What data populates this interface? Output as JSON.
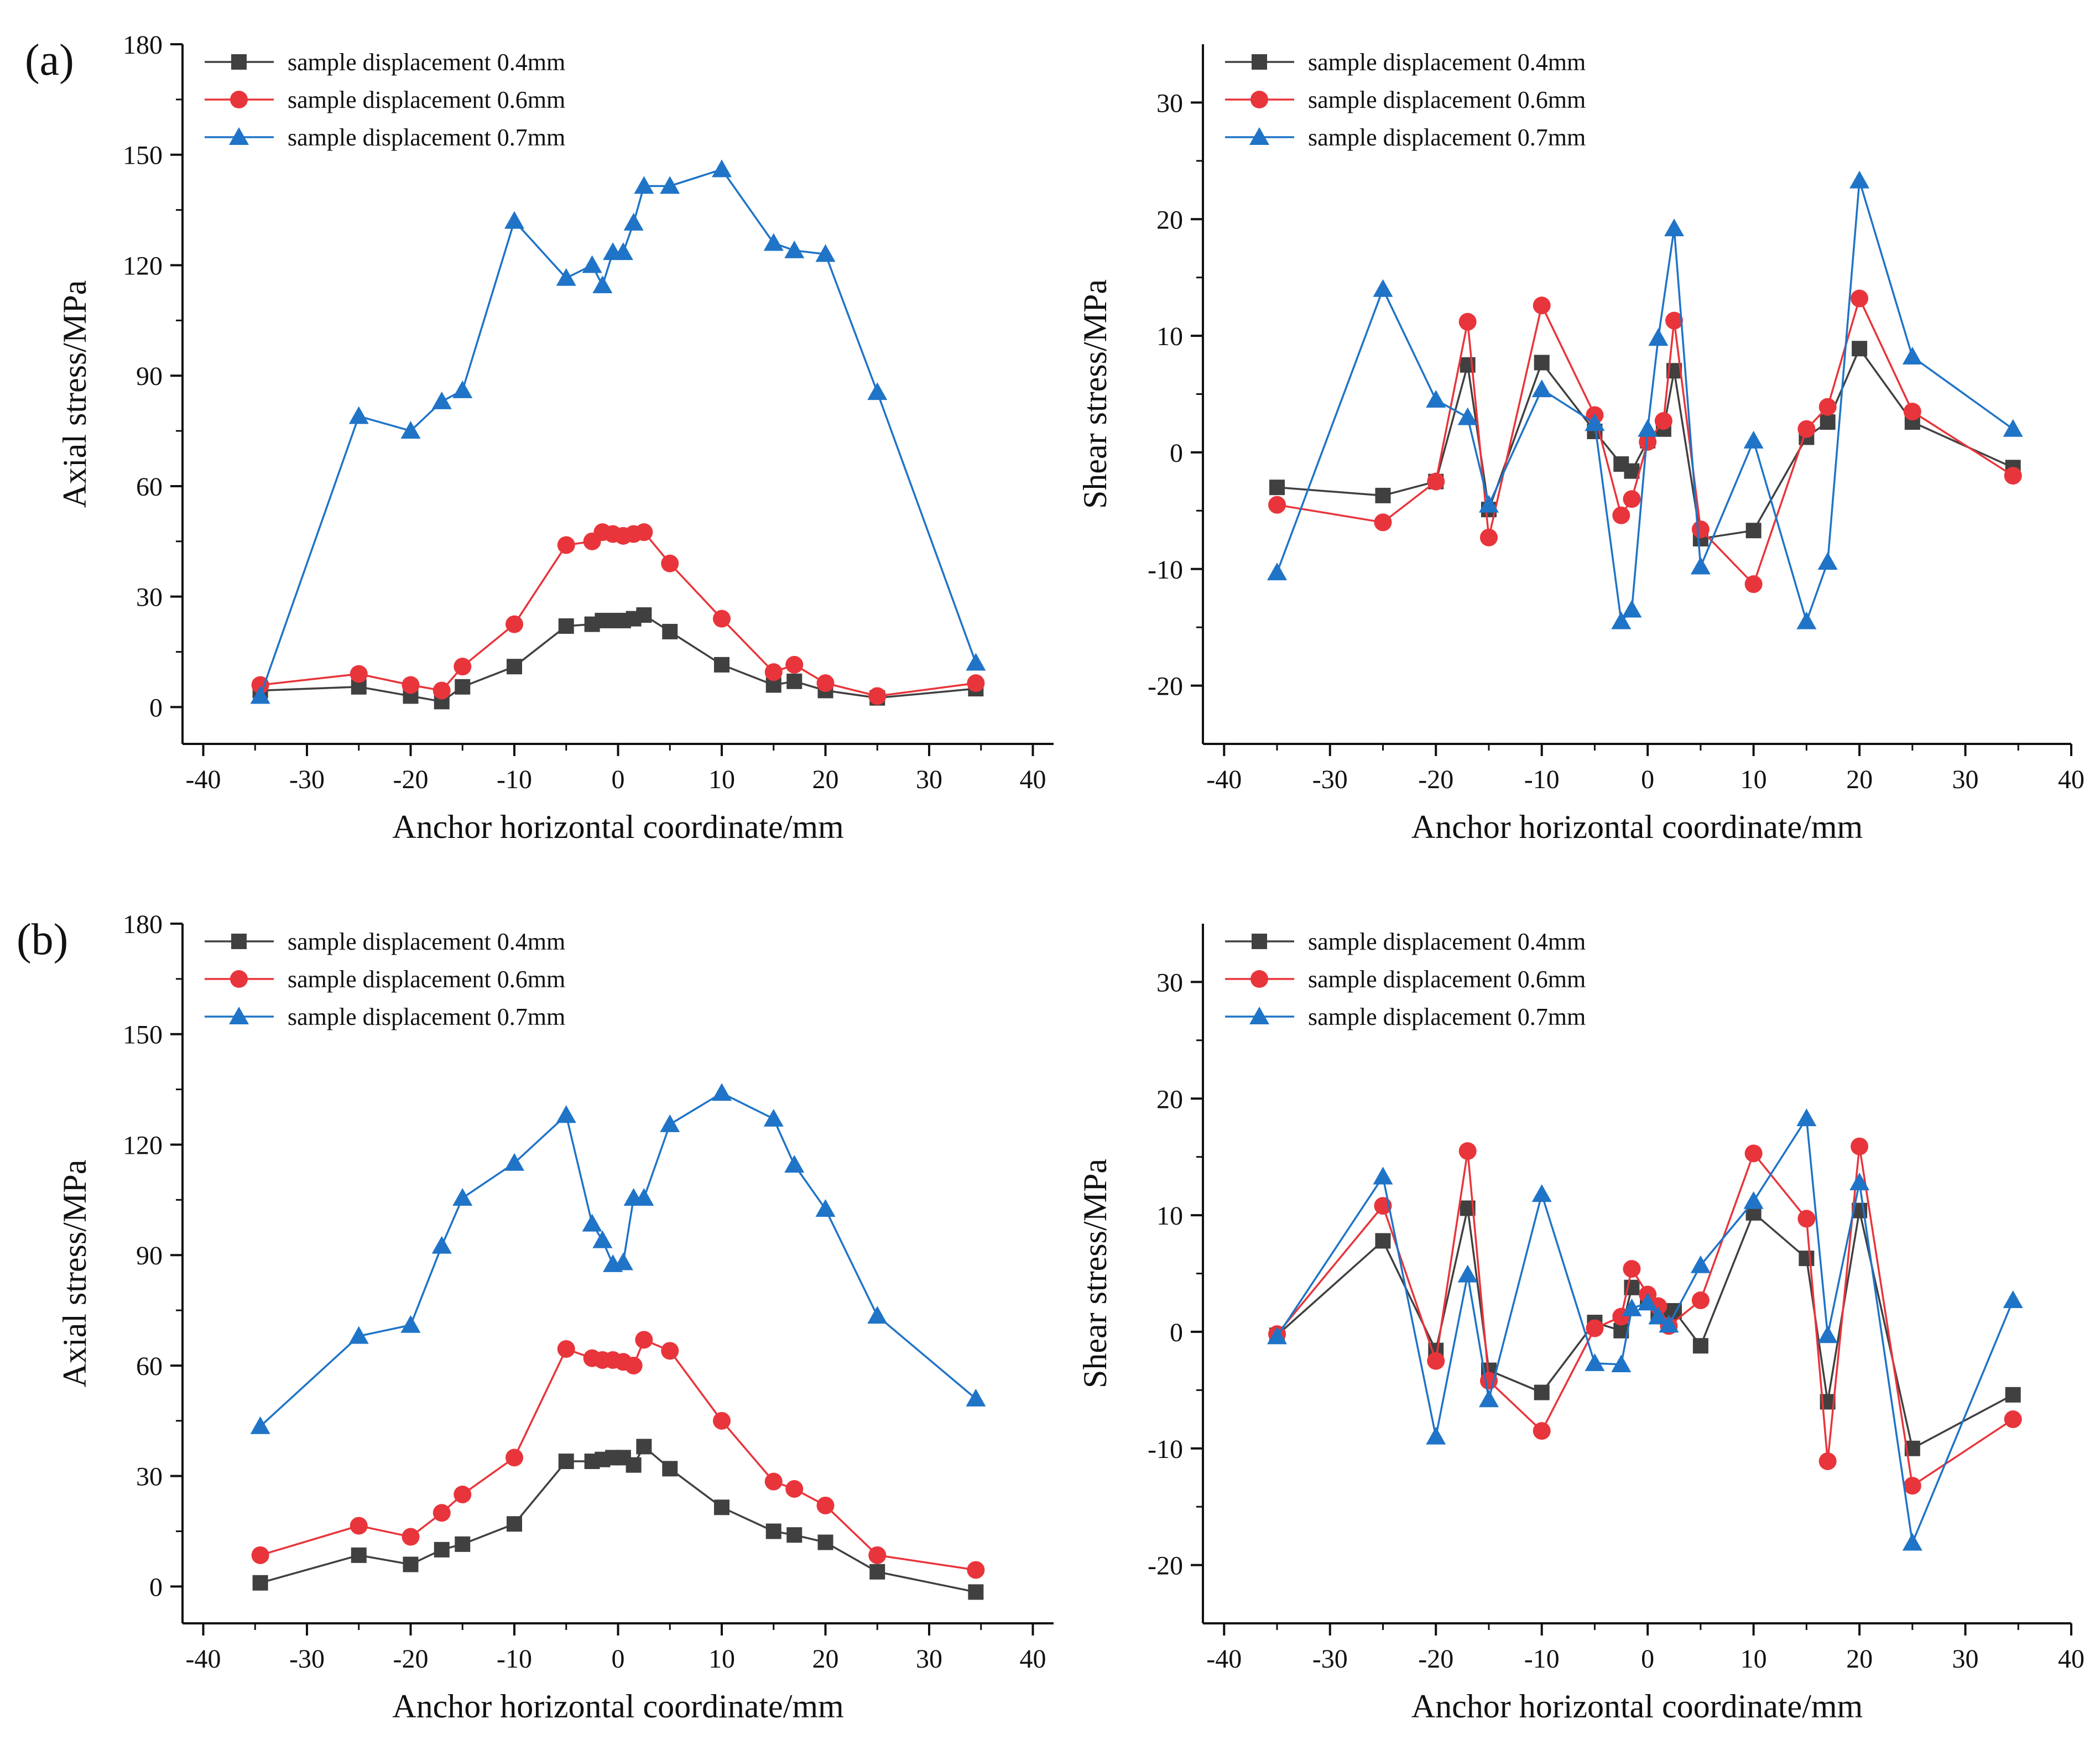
{
  "figure": {
    "panel_labels": [
      "(a)",
      "(b)"
    ],
    "series_styles": [
      {
        "color": "#404040",
        "marker": "square"
      },
      {
        "color": "#e8353b",
        "marker": "circle"
      },
      {
        "color": "#1f74c7",
        "marker": "triangle"
      }
    ]
  },
  "chart_data": [
    {
      "id": "a-axial",
      "type": "line",
      "panel": "(a)",
      "title": "",
      "xlabel": "Anchor horizontal coordinate/mm",
      "ylabel": "Axial stress/MPa",
      "xlim": [
        -42,
        42
      ],
      "ylim": [
        -10,
        180
      ],
      "xticks": [
        -40,
        -30,
        -20,
        -10,
        0,
        10,
        20,
        30,
        40
      ],
      "yticks": [
        0,
        30,
        60,
        90,
        120,
        150,
        180
      ],
      "legend": "top-left",
      "series": [
        {
          "name": "sample displacement 0.4mm",
          "x": [
            -34.5,
            -25,
            -20,
            -17,
            -15,
            -10,
            -5,
            -2.5,
            -1.5,
            -0.5,
            0.5,
            1.5,
            2.5,
            5,
            10,
            15,
            17,
            20,
            25,
            34.5
          ],
          "values": [
            4.5,
            5.5,
            3,
            1.5,
            5.5,
            11,
            22,
            22.5,
            23.5,
            23.5,
            23.5,
            24,
            25,
            20.5,
            11.5,
            6,
            7,
            4.5,
            2.5,
            5
          ]
        },
        {
          "name": "sample displacement 0.6mm",
          "x": [
            -34.5,
            -25,
            -20,
            -17,
            -15,
            -10,
            -5,
            -2.5,
            -1.5,
            -0.5,
            0.5,
            1.5,
            2.5,
            5,
            10,
            15,
            17,
            20,
            25,
            34.5
          ],
          "values": [
            6,
            9,
            6,
            4.5,
            11,
            22.5,
            44,
            45,
            47.5,
            47,
            46.5,
            47,
            47.5,
            39,
            24,
            9.5,
            11.5,
            6.5,
            3,
            6.5
          ]
        },
        {
          "name": "sample displacement 0.7mm",
          "x": [
            -34.5,
            -25,
            -20,
            -17,
            -15,
            -10,
            -5,
            -2.5,
            -1.5,
            -0.5,
            0.5,
            1.5,
            2.5,
            5,
            10,
            15,
            17,
            20,
            25,
            34.5
          ],
          "values": [
            3,
            79,
            75,
            83,
            86,
            132,
            116.5,
            120,
            114.5,
            123.5,
            123.5,
            131.5,
            141.5,
            141.5,
            146,
            126,
            124,
            123,
            85.5,
            12
          ]
        }
      ]
    },
    {
      "id": "a-shear",
      "type": "line",
      "panel": "(a)",
      "title": "",
      "xlabel": "Anchor horizontal coordinate/mm",
      "ylabel": "Shear stress/MPa",
      "xlim": [
        -42,
        40
      ],
      "ylim": [
        -25,
        35
      ],
      "xticks": [
        -40,
        -30,
        -20,
        -10,
        0,
        10,
        20,
        30,
        40
      ],
      "yticks": [
        -20,
        -10,
        0,
        10,
        20,
        30
      ],
      "legend": "top-left",
      "series": [
        {
          "name": "sample displacement 0.4mm",
          "x": [
            -35,
            -25,
            -20,
            -17,
            -15,
            -10,
            -5,
            -2.5,
            -1.5,
            0,
            1.5,
            2.5,
            5,
            10,
            15,
            17,
            20,
            25,
            34.5
          ],
          "values": [
            -3,
            -3.7,
            -2.5,
            7.5,
            -4.9,
            7.7,
            1.8,
            -1,
            -1.6,
            1,
            2,
            7,
            -7.4,
            -6.7,
            1.3,
            2.6,
            8.9,
            2.6,
            -1.3
          ]
        },
        {
          "name": "sample displacement 0.6mm",
          "x": [
            -35,
            -25,
            -20,
            -17,
            -15,
            -10,
            -5,
            -2.5,
            -1.5,
            0,
            1.5,
            2.5,
            5,
            10,
            15,
            17,
            20,
            25,
            34.5
          ],
          "values": [
            -4.5,
            -6,
            -2.5,
            11.2,
            -7.3,
            12.6,
            3.2,
            -5.4,
            -4,
            0.9,
            2.7,
            11.3,
            -6.6,
            -11.3,
            2,
            3.9,
            13.2,
            3.5,
            -2
          ]
        },
        {
          "name": "sample displacement 0.7mm",
          "x": [
            -35,
            -25,
            -20,
            -17,
            -15,
            -10,
            -5,
            -2.5,
            -1.5,
            0,
            1,
            2.5,
            5,
            10,
            15,
            17,
            20,
            25,
            34.5
          ],
          "values": [
            -10.3,
            14,
            4.5,
            3,
            -4.5,
            5.4,
            2.5,
            -14.5,
            -13.5,
            2,
            9.8,
            19.2,
            -9.8,
            1,
            -14.5,
            -9.4,
            23.3,
            8.2,
            2
          ]
        }
      ]
    },
    {
      "id": "b-axial",
      "type": "line",
      "panel": "(b)",
      "title": "",
      "xlabel": "Anchor horizontal coordinate/mm",
      "ylabel": "Axial stress/MPa",
      "xlim": [
        -42,
        42
      ],
      "ylim": [
        -10,
        180
      ],
      "xticks": [
        -40,
        -30,
        -20,
        -10,
        0,
        10,
        20,
        30,
        40
      ],
      "yticks": [
        0,
        30,
        60,
        90,
        120,
        150,
        180
      ],
      "legend": "top-left",
      "series": [
        {
          "name": "sample displacement 0.4mm",
          "x": [
            -34.5,
            -25,
            -20,
            -17,
            -15,
            -10,
            -5,
            -2.5,
            -1.5,
            -0.5,
            0.5,
            1.5,
            2.5,
            5,
            10,
            15,
            17,
            20,
            25,
            34.5
          ],
          "values": [
            1,
            8.5,
            6,
            10,
            11.5,
            17,
            34,
            34,
            34.5,
            35,
            35,
            33,
            38,
            32,
            21.5,
            15,
            14,
            12,
            4,
            -1.5
          ]
        },
        {
          "name": "sample displacement 0.6mm",
          "x": [
            -34.5,
            -25,
            -20,
            -17,
            -15,
            -10,
            -5,
            -2.5,
            -1.5,
            -0.5,
            0.5,
            1.5,
            2.5,
            5,
            10,
            15,
            17,
            20,
            25,
            34.5
          ],
          "values": [
            8.5,
            16.5,
            13.5,
            20,
            25,
            35,
            64.5,
            62,
            61.5,
            61.5,
            61,
            60,
            67,
            64,
            45,
            28.5,
            26.5,
            22,
            8.5,
            4.5
          ]
        },
        {
          "name": "sample displacement 0.7mm",
          "x": [
            -34.5,
            -25,
            -20,
            -17,
            -15,
            -10,
            -5,
            -2.5,
            -1.5,
            -0.5,
            0.5,
            1.5,
            2.5,
            5,
            10,
            15,
            17,
            20,
            25,
            34.5
          ],
          "values": [
            43.5,
            68,
            71,
            92.5,
            105.5,
            115,
            128,
            98.5,
            94,
            87.5,
            88,
            105.5,
            105.5,
            125.5,
            134,
            127,
            114.5,
            102.5,
            73.5,
            51
          ]
        }
      ]
    },
    {
      "id": "b-shear",
      "type": "line",
      "panel": "(b)",
      "title": "",
      "xlabel": "Anchor horizontal coordinate/mm",
      "ylabel": "Shear stress/MPa",
      "xlim": [
        -42,
        40
      ],
      "ylim": [
        -25,
        35
      ],
      "xticks": [
        -40,
        -30,
        -20,
        -10,
        0,
        10,
        20,
        30,
        40
      ],
      "yticks": [
        -20,
        -10,
        0,
        10,
        20,
        30
      ],
      "legend": "top-left",
      "series": [
        {
          "name": "sample displacement 0.4mm",
          "x": [
            -35,
            -25,
            -20,
            -17,
            -15,
            -10,
            -5,
            -2.5,
            -1.5,
            0,
            1,
            2,
            2.5,
            5,
            10,
            15,
            17,
            20,
            25,
            34.5
          ],
          "values": [
            -0.3,
            7.8,
            -1.6,
            10.6,
            -3.3,
            -5.2,
            0.8,
            0.1,
            3.8,
            2.7,
            1.7,
            1.5,
            1.8,
            -1.2,
            10.2,
            6.3,
            -6,
            10.4,
            -10,
            -5.4
          ]
        },
        {
          "name": "sample displacement 0.6mm",
          "x": [
            -35,
            -25,
            -20,
            -17,
            -15,
            -10,
            -5,
            -2.5,
            -1.5,
            0,
            1,
            2,
            5,
            10,
            15,
            17,
            20,
            25,
            34.5
          ],
          "values": [
            -0.2,
            10.8,
            -2.5,
            15.5,
            -4.2,
            -8.5,
            0.3,
            1.3,
            5.4,
            3.2,
            2.2,
            0.5,
            2.7,
            15.3,
            9.7,
            -11.1,
            15.9,
            -13.2,
            -7.5
          ]
        },
        {
          "name": "sample displacement 0.7mm",
          "x": [
            -35,
            -25,
            -20,
            -17,
            -15,
            -10,
            -5,
            -2.5,
            -1.5,
            0,
            1,
            2,
            5,
            10,
            15,
            17,
            20,
            25,
            34.5
          ],
          "values": [
            -0.4,
            13.3,
            -9,
            4.9,
            -5.8,
            11.8,
            -2.7,
            -2.8,
            2,
            2.5,
            1.3,
            0.6,
            5.7,
            11.2,
            18.3,
            -0.3,
            12.8,
            -18.1,
            2.7
          ]
        }
      ]
    }
  ]
}
